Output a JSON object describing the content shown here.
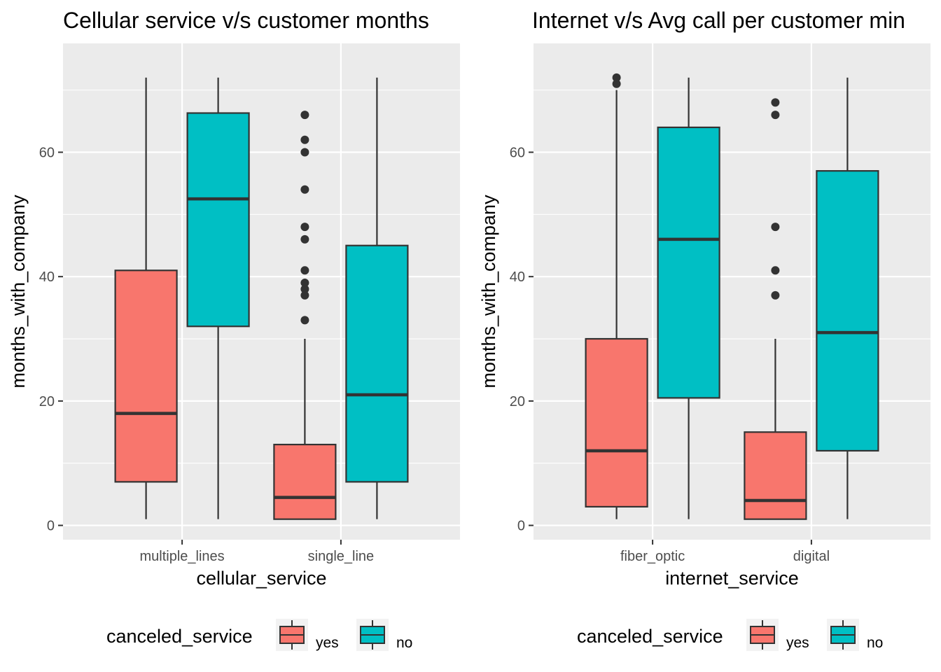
{
  "chart_data": [
    {
      "type": "boxplot",
      "title": "Cellular service v/s customer months",
      "xlabel": "cellular_service",
      "ylabel": "months_with_company",
      "categories": [
        "multiple_lines",
        "single_line"
      ],
      "ylim": [
        -2.3,
        77.5
      ],
      "yticks": [
        0,
        20,
        40,
        60
      ],
      "grid": true,
      "legend": {
        "title": "canceled_service",
        "position": "bottom",
        "entries": [
          {
            "label": "yes",
            "color": "#F8766D"
          },
          {
            "label": "no",
            "color": "#00BFC4"
          }
        ]
      },
      "series": [
        {
          "name": "yes",
          "color": "#F8766D",
          "boxes": [
            {
              "category": "multiple_lines",
              "whisker_low": 1,
              "q1": 7,
              "median": 18,
              "q3": 41,
              "whisker_high": 72,
              "outliers": []
            },
            {
              "category": "single_line",
              "whisker_low": 1,
              "q1": 1,
              "median": 4.5,
              "q3": 13,
              "whisker_high": 30,
              "outliers": [
                33,
                37,
                38,
                39,
                41,
                46,
                48,
                54,
                60,
                62,
                66
              ]
            }
          ]
        },
        {
          "name": "no",
          "color": "#00BFC4",
          "boxes": [
            {
              "category": "multiple_lines",
              "whisker_low": 1,
              "q1": 32,
              "median": 52.5,
              "q3": 66.3,
              "whisker_high": 72,
              "outliers": []
            },
            {
              "category": "single_line",
              "whisker_low": 1,
              "q1": 7,
              "median": 21,
              "q3": 45,
              "whisker_high": 72,
              "outliers": []
            }
          ]
        }
      ]
    },
    {
      "type": "boxplot",
      "title": "Internet v/s Avg call per customer min",
      "xlabel": "internet_service",
      "ylabel": "months_with_company",
      "categories": [
        "fiber_optic",
        "digital"
      ],
      "ylim": [
        -2.3,
        77.5
      ],
      "yticks": [
        0,
        20,
        40,
        60
      ],
      "grid": true,
      "legend": {
        "title": "canceled_service",
        "position": "bottom",
        "entries": [
          {
            "label": "yes",
            "color": "#F8766D"
          },
          {
            "label": "no",
            "color": "#00BFC4"
          }
        ]
      },
      "series": [
        {
          "name": "yes",
          "color": "#F8766D",
          "boxes": [
            {
              "category": "fiber_optic",
              "whisker_low": 1,
              "q1": 3,
              "median": 12,
              "q3": 30,
              "whisker_high": 70,
              "outliers": [
                71,
                72
              ]
            },
            {
              "category": "digital",
              "whisker_low": 1,
              "q1": 1,
              "median": 4,
              "q3": 15,
              "whisker_high": 30,
              "outliers": [
                37,
                41,
                48,
                66,
                68
              ]
            }
          ]
        },
        {
          "name": "no",
          "color": "#00BFC4",
          "boxes": [
            {
              "category": "fiber_optic",
              "whisker_low": 1,
              "q1": 20.5,
              "median": 46,
              "q3": 64,
              "whisker_high": 72,
              "outliers": []
            },
            {
              "category": "digital",
              "whisker_low": 1,
              "q1": 12,
              "median": 31,
              "q3": 57,
              "whisker_high": 72,
              "outliers": []
            }
          ]
        }
      ]
    }
  ]
}
